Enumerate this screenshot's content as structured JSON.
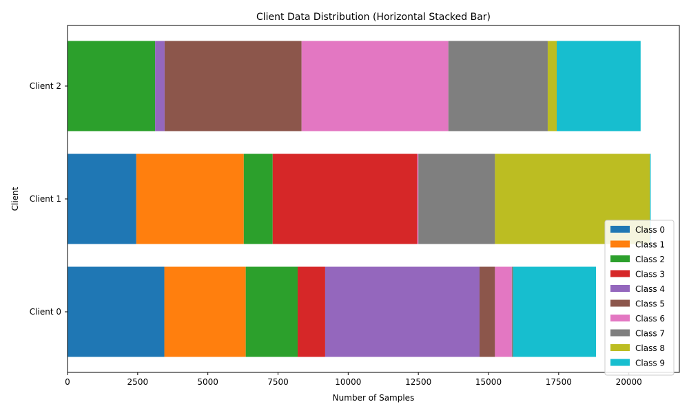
{
  "chart_data": {
    "type": "bar",
    "orientation": "horizontal",
    "stacked": true,
    "title": "Client Data Distribution (Horizontal Stacked Bar)",
    "xlabel": "Number of Samples",
    "ylabel": "Client",
    "xlim": [
      0,
      21800
    ],
    "xticks": [
      0,
      2500,
      5000,
      7500,
      10000,
      12500,
      15000,
      17500,
      20000
    ],
    "xtick_labels": [
      "0",
      "2500",
      "5000",
      "7500",
      "10000",
      "12500",
      "15000",
      "17500",
      "20000"
    ],
    "categories": [
      "Client 0",
      "Client 1",
      "Client 2"
    ],
    "legend_position": "lower right",
    "grid": false,
    "series": [
      {
        "name": "Class 0",
        "color": "#1f77b4",
        "values": [
          3450,
          2450,
          0
        ]
      },
      {
        "name": "Class 1",
        "color": "#ff7f0e",
        "values": [
          2900,
          3830,
          0
        ]
      },
      {
        "name": "Class 2",
        "color": "#2ca02c",
        "values": [
          1850,
          1030,
          3120
        ]
      },
      {
        "name": "Class 3",
        "color": "#d62728",
        "values": [
          980,
          5150,
          0
        ]
      },
      {
        "name": "Class 4",
        "color": "#9467bd",
        "values": [
          5500,
          0,
          340
        ]
      },
      {
        "name": "Class 5",
        "color": "#8c564b",
        "values": [
          550,
          0,
          4880
        ]
      },
      {
        "name": "Class 6",
        "color": "#e377c2",
        "values": [
          600,
          40,
          5230
        ]
      },
      {
        "name": "Class 7",
        "color": "#7f7f7f",
        "values": [
          50,
          2730,
          3540
        ]
      },
      {
        "name": "Class 8",
        "color": "#bcbd22",
        "values": [
          0,
          5520,
          320
        ]
      },
      {
        "name": "Class 9",
        "color": "#17becf",
        "values": [
          2950,
          30,
          2990
        ]
      }
    ]
  }
}
